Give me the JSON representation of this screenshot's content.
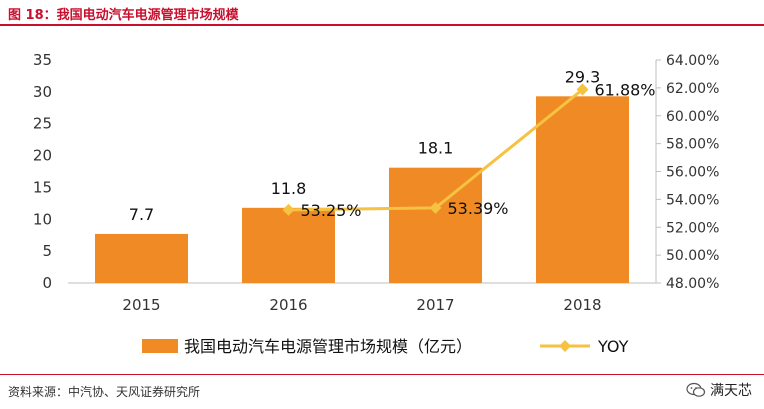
{
  "figure_title": "图 18：我国电动汽车电源管理市场规模",
  "source_note": "资料来源：中汽协、天风证券研究所",
  "watermark_text": "满天芯",
  "colors": {
    "bar": "#f08a24",
    "line": "#f5c242",
    "title": "#c8102e"
  },
  "chart_data": {
    "type": "bar",
    "categories": [
      "2015",
      "2016",
      "2017",
      "2018"
    ],
    "series": [
      {
        "name": "我国电动汽车电源管理市场规模（亿元）",
        "type": "bar",
        "axis": "left",
        "values": [
          7.7,
          11.8,
          18.1,
          29.3
        ],
        "labels": [
          "7.7",
          "11.8",
          "18.1",
          "29.3"
        ]
      },
      {
        "name": "YOY",
        "type": "line",
        "axis": "right",
        "values": [
          null,
          53.25,
          53.39,
          61.88
        ],
        "labels": [
          "",
          "53.25%",
          "53.39%",
          "61.88%"
        ]
      }
    ],
    "y_left": {
      "min": 0,
      "max": 35,
      "ticks": [
        "0",
        "5",
        "10",
        "15",
        "20",
        "25",
        "30",
        "35"
      ]
    },
    "y_right": {
      "min": 48,
      "max": 64,
      "ticks": [
        "48.00%",
        "50.00%",
        "52.00%",
        "54.00%",
        "56.00%",
        "58.00%",
        "60.00%",
        "62.00%",
        "64.00%"
      ]
    },
    "legend_position": "bottom",
    "grid": false
  }
}
